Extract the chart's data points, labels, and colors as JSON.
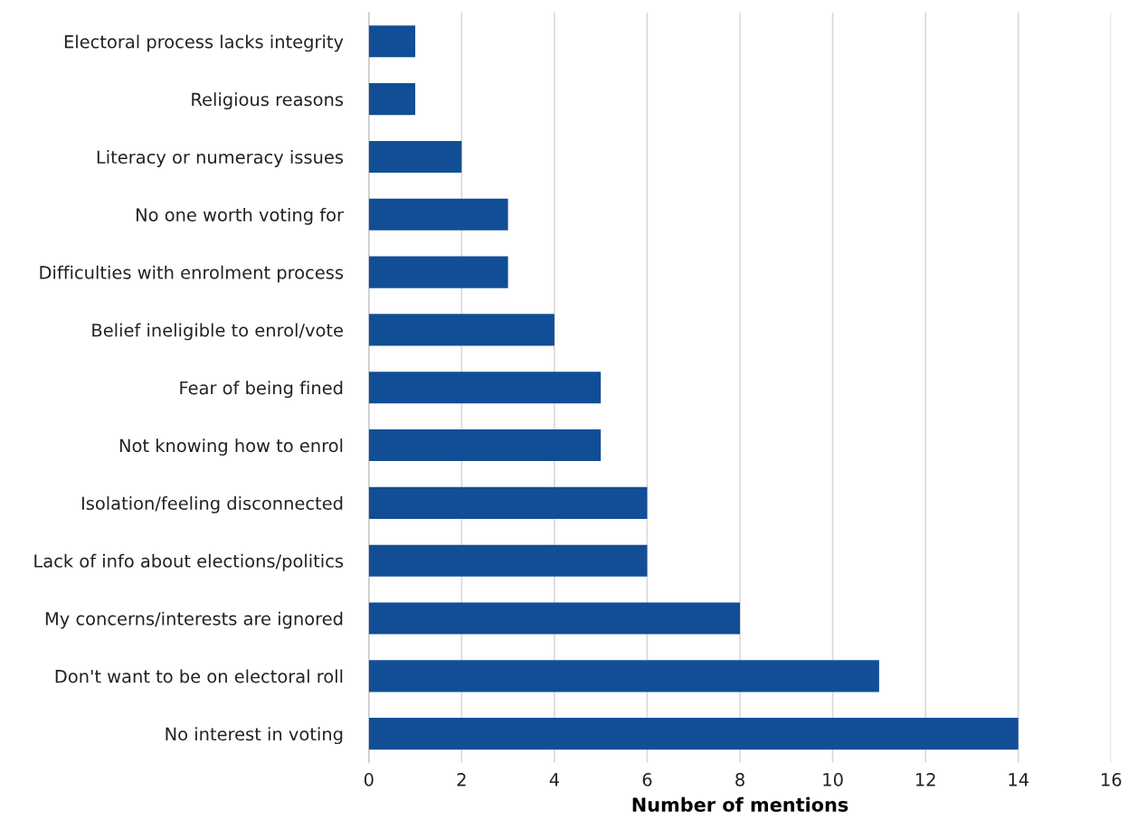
{
  "chart_data": {
    "type": "bar",
    "orientation": "horizontal",
    "xlabel": "Number of mentions",
    "categories": [
      "Electoral process lacks integrity",
      "Religious reasons",
      "Literacy or numeracy issues",
      "No one worth voting for",
      "Difficulties with enrolment process",
      "Belief ineligible to enrol/vote",
      "Fear of being fined",
      "Not knowing how to enrol",
      "Isolation/feeling disconnected",
      "Lack of info about elections/politics",
      "My concerns/interests are ignored",
      "Don't want to be on electoral roll",
      "No interest in voting"
    ],
    "values": [
      1,
      1,
      2,
      3,
      3,
      4,
      5,
      5,
      6,
      6,
      8,
      11,
      14
    ],
    "color": "#114e96",
    "xlim": [
      0,
      16
    ],
    "xticks": [
      0,
      2,
      4,
      6,
      8,
      10,
      12,
      14,
      16
    ],
    "grid": "x"
  }
}
